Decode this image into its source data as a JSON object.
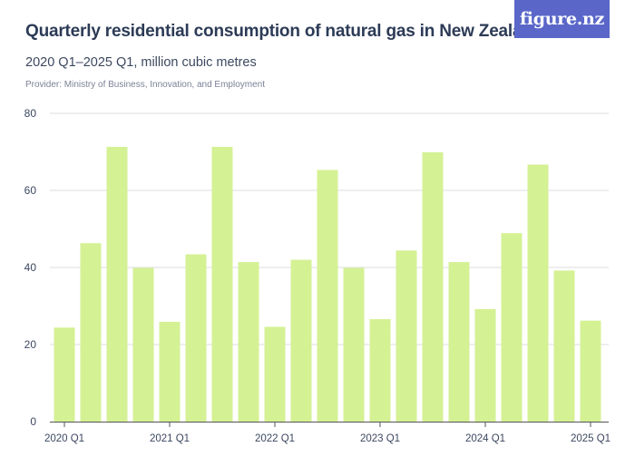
{
  "title": "Quarterly residential consumption of natural gas in New Zealand",
  "subtitle": "2020 Q1–2025 Q1, million cubic metres",
  "provider": "Provider: Ministry of Business, Innovation, and Employment",
  "logo": "figure.nz",
  "colors": {
    "bar": "#d4f194",
    "grid": "#dddddd",
    "axis": "#555555",
    "text": "#3c4860",
    "logo_bg": "#5a67c9"
  },
  "chart_data": {
    "type": "bar",
    "title": "Quarterly residential consumption of natural gas in New Zealand",
    "subtitle": "2020 Q1–2025 Q1, million cubic metres",
    "xlabel": "",
    "ylabel": "",
    "ylim": [
      0,
      80
    ],
    "yticks": [
      0,
      20,
      40,
      60,
      80
    ],
    "grid": true,
    "categories": [
      "2020 Q1",
      "2020 Q2",
      "2020 Q3",
      "2020 Q4",
      "2021 Q1",
      "2021 Q2",
      "2021 Q3",
      "2021 Q4",
      "2022 Q1",
      "2022 Q2",
      "2022 Q3",
      "2022 Q4",
      "2023 Q1",
      "2023 Q2",
      "2023 Q3",
      "2023 Q4",
      "2024 Q1",
      "2024 Q2",
      "2024 Q3",
      "2024 Q4",
      "2025 Q1"
    ],
    "values": [
      24.4,
      46.3,
      71.3,
      39.9,
      25.9,
      43.4,
      71.3,
      41.4,
      24.6,
      42.0,
      65.3,
      39.9,
      26.6,
      44.4,
      69.9,
      41.4,
      29.2,
      48.9,
      66.7,
      39.2,
      26.2
    ],
    "xtick_labels": [
      {
        "index": 0,
        "label": "2020 Q1"
      },
      {
        "index": 4,
        "label": "2021 Q1"
      },
      {
        "index": 8,
        "label": "2022 Q1"
      },
      {
        "index": 12,
        "label": "2023 Q1"
      },
      {
        "index": 16,
        "label": "2024 Q1"
      },
      {
        "index": 20,
        "label": "2025 Q1"
      }
    ]
  }
}
